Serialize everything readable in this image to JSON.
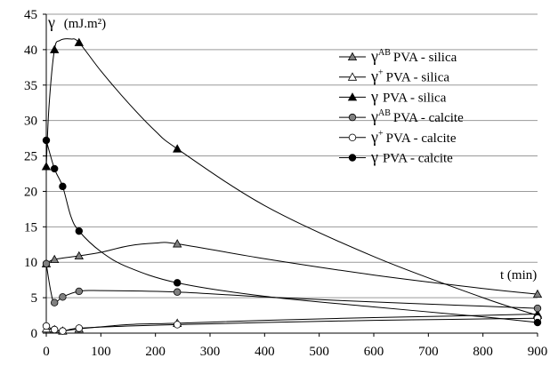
{
  "chart_data": {
    "type": "line",
    "ylabel_symbol": "γ",
    "ylabel_unit": "(mJ.m²)",
    "xlabel": "t (min)",
    "xlim": [
      0,
      900
    ],
    "ylim": [
      0,
      45
    ],
    "xticks": [
      "0",
      "100",
      "200",
      "300",
      "400",
      "500",
      "600",
      "700",
      "800",
      "900"
    ],
    "yticks": [
      "0",
      "5",
      "10",
      "15",
      "20",
      "25",
      "30",
      "35",
      "40",
      "45"
    ],
    "grid": "horizontal",
    "legend_position": "top-right",
    "series": [
      {
        "id": "gab_silica",
        "legend_symbol": "γ",
        "legend_sup": "AB",
        "legend_text": "PVA - silica",
        "marker": "triangle",
        "fill": "#808080",
        "x": [
          0,
          15,
          60,
          240,
          900
        ],
        "y": [
          9.8,
          10.4,
          10.9,
          12.6,
          5.5
        ],
        "curve": [
          [
            0,
            9.8
          ],
          [
            15,
            10.4
          ],
          [
            60,
            10.9
          ],
          [
            100,
            11.4
          ],
          [
            150,
            12.3
          ],
          [
            200,
            12.7
          ],
          [
            240,
            12.6
          ],
          [
            400,
            10.5
          ],
          [
            600,
            8.2
          ],
          [
            800,
            6.3
          ],
          [
            900,
            5.5
          ]
        ]
      },
      {
        "id": "gplus_silica",
        "legend_symbol": "γ",
        "legend_sup": "+",
        "legend_text": "PVA - silica",
        "marker": "triangle",
        "fill": "#ffffff",
        "x": [
          0,
          15,
          30,
          60,
          240,
          900
        ],
        "y": [
          0.6,
          0.5,
          0.3,
          0.6,
          1.4,
          2.7
        ],
        "curve": [
          [
            0,
            0.6
          ],
          [
            15,
            0.5
          ],
          [
            30,
            0.3
          ],
          [
            60,
            0.6
          ],
          [
            150,
            1.2
          ],
          [
            240,
            1.4
          ],
          [
            400,
            1.8
          ],
          [
            600,
            2.2
          ],
          [
            800,
            2.5
          ],
          [
            900,
            2.7
          ]
        ]
      },
      {
        "id": "g_silica",
        "legend_symbol": "γ",
        "legend_sup": "",
        "legend_text": "PVA - silica",
        "marker": "triangle",
        "fill": "#000000",
        "x": [
          0,
          15,
          60,
          240,
          900
        ],
        "y": [
          23.5,
          40.0,
          41.0,
          26.0,
          2.5
        ],
        "curve": [
          [
            0,
            23.5
          ],
          [
            5,
            32
          ],
          [
            15,
            40.0
          ],
          [
            25,
            41.3
          ],
          [
            45,
            41.5
          ],
          [
            60,
            41.0
          ],
          [
            100,
            37
          ],
          [
            150,
            32.5
          ],
          [
            200,
            28.5
          ],
          [
            240,
            26.0
          ],
          [
            400,
            18
          ],
          [
            600,
            10.8
          ],
          [
            800,
            5
          ],
          [
            900,
            2.5
          ]
        ]
      },
      {
        "id": "gab_calcite",
        "legend_symbol": "γ",
        "legend_sup": "AB",
        "legend_text": "PVA - calcite",
        "marker": "circle",
        "fill": "#808080",
        "x": [
          0,
          15,
          30,
          60,
          240,
          900
        ],
        "y": [
          9.8,
          4.3,
          5.1,
          5.9,
          5.8,
          3.5
        ],
        "curve": [
          [
            0,
            9.8
          ],
          [
            8,
            6
          ],
          [
            15,
            4.3
          ],
          [
            30,
            5.1
          ],
          [
            60,
            5.9
          ],
          [
            100,
            6.0
          ],
          [
            240,
            5.8
          ],
          [
            400,
            5.1
          ],
          [
            600,
            4.4
          ],
          [
            800,
            3.8
          ],
          [
            900,
            3.5
          ]
        ]
      },
      {
        "id": "gplus_calcite",
        "legend_symbol": "γ",
        "legend_sup": "+",
        "legend_text": "PVA - calcite",
        "marker": "circle",
        "fill": "#ffffff",
        "x": [
          0,
          15,
          30,
          60,
          240,
          900
        ],
        "y": [
          1.0,
          0.5,
          0.3,
          0.7,
          1.2,
          2.1
        ],
        "curve": [
          [
            0,
            1.0
          ],
          [
            15,
            0.5
          ],
          [
            30,
            0.3
          ],
          [
            60,
            0.7
          ],
          [
            150,
            1.0
          ],
          [
            240,
            1.2
          ],
          [
            400,
            1.5
          ],
          [
            600,
            1.8
          ],
          [
            800,
            2.0
          ],
          [
            900,
            2.1
          ]
        ]
      },
      {
        "id": "g_calcite",
        "legend_symbol": "γ",
        "legend_sup": "",
        "legend_text": "PVA - calcite",
        "marker": "circle",
        "fill": "#000000",
        "x": [
          0,
          15,
          30,
          60,
          240,
          900
        ],
        "y": [
          27.2,
          23.2,
          20.7,
          14.4,
          7.1,
          1.5
        ],
        "curve": [
          [
            0,
            27.2
          ],
          [
            15,
            23.2
          ],
          [
            30,
            20.7
          ],
          [
            45,
            16.5
          ],
          [
            60,
            14.4
          ],
          [
            100,
            11.5
          ],
          [
            150,
            9.3
          ],
          [
            240,
            7.1
          ],
          [
            400,
            5.2
          ],
          [
            600,
            3.7
          ],
          [
            800,
            2.3
          ],
          [
            900,
            1.5
          ]
        ]
      }
    ]
  }
}
